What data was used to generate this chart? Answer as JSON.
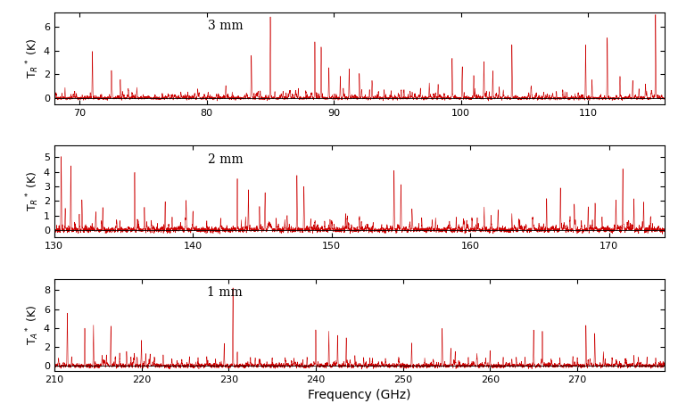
{
  "panels": [
    {
      "label": "3 mm",
      "xmin": 68,
      "xmax": 116,
      "ymin": -0.5,
      "ymax": 7.2,
      "yticks": [
        0,
        2,
        4,
        6
      ],
      "xticks": [
        70,
        80,
        90,
        100,
        110
      ],
      "ylabel": "T$_R$$^*$ (K)",
      "noise": 0.06,
      "strong_lines": [
        [
          71.0,
          3.8
        ],
        [
          72.5,
          2.0
        ],
        [
          73.2,
          1.5
        ],
        [
          74.5,
          0.9
        ],
        [
          83.5,
          3.6
        ],
        [
          85.0,
          7.0
        ],
        [
          86.5,
          0.7
        ],
        [
          87.2,
          0.8
        ],
        [
          88.5,
          4.8
        ],
        [
          89.0,
          3.9
        ],
        [
          89.6,
          2.5
        ],
        [
          90.5,
          1.6
        ],
        [
          91.2,
          2.4
        ],
        [
          92.0,
          2.0
        ],
        [
          93.0,
          1.5
        ],
        [
          96.0,
          0.5
        ],
        [
          99.3,
          3.3
        ],
        [
          100.1,
          2.5
        ],
        [
          101.0,
          1.9
        ],
        [
          101.8,
          2.7
        ],
        [
          102.5,
          1.8
        ],
        [
          104.0,
          4.4
        ],
        [
          109.8,
          4.5
        ],
        [
          110.3,
          1.5
        ],
        [
          111.5,
          5.2
        ],
        [
          114.5,
          0.9
        ],
        [
          115.3,
          7.1
        ]
      ],
      "medium_lines": [
        [
          69.5,
          0.4
        ],
        [
          70.2,
          0.3
        ],
        [
          75.0,
          0.3
        ],
        [
          76.5,
          0.4
        ],
        [
          77.2,
          0.3
        ],
        [
          78.5,
          0.5
        ],
        [
          79.3,
          0.4
        ],
        [
          80.1,
          0.5
        ],
        [
          81.5,
          0.4
        ],
        [
          82.0,
          0.4
        ],
        [
          84.2,
          0.6
        ],
        [
          86.0,
          0.5
        ],
        [
          87.8,
          0.6
        ],
        [
          92.8,
          0.8
        ],
        [
          93.5,
          0.5
        ],
        [
          94.5,
          0.6
        ],
        [
          95.3,
          0.7
        ],
        [
          96.8,
          0.5
        ],
        [
          97.5,
          1.0
        ],
        [
          98.2,
          0.8
        ],
        [
          103.0,
          1.0
        ],
        [
          105.5,
          0.8
        ],
        [
          106.5,
          0.6
        ],
        [
          107.5,
          0.5
        ],
        [
          108.0,
          0.7
        ],
        [
          112.5,
          1.8
        ],
        [
          113.5,
          1.2
        ],
        [
          114.0,
          0.8
        ]
      ]
    },
    {
      "label": "2 mm",
      "xmin": 130,
      "xmax": 174,
      "ymin": -0.5,
      "ymax": 5.8,
      "yticks": [
        0,
        1,
        2,
        3,
        4,
        5
      ],
      "xticks": [
        130,
        140,
        150,
        160,
        170
      ],
      "ylabel": "T$_R$$^*$ (K)",
      "noise": 0.08,
      "strong_lines": [
        [
          130.5,
          5.0
        ],
        [
          131.2,
          4.5
        ],
        [
          132.0,
          2.0
        ],
        [
          133.5,
          1.5
        ],
        [
          135.8,
          4.0
        ],
        [
          136.5,
          1.5
        ],
        [
          138.0,
          2.0
        ],
        [
          139.5,
          1.5
        ],
        [
          143.2,
          3.3
        ],
        [
          144.0,
          2.9
        ],
        [
          144.8,
          1.7
        ],
        [
          145.2,
          2.1
        ],
        [
          147.5,
          3.4
        ],
        [
          148.0,
          2.9
        ],
        [
          150.0,
          0.5
        ],
        [
          154.5,
          3.9
        ],
        [
          155.0,
          2.7
        ],
        [
          155.8,
          1.5
        ],
        [
          162.0,
          1.5
        ],
        [
          163.0,
          1.0
        ],
        [
          165.5,
          2.2
        ],
        [
          166.5,
          2.5
        ],
        [
          167.5,
          1.8
        ],
        [
          168.5,
          1.7
        ],
        [
          170.5,
          2.1
        ],
        [
          171.0,
          4.2
        ],
        [
          171.8,
          2.0
        ],
        [
          172.5,
          2.0
        ]
      ],
      "medium_lines": [
        [
          130.8,
          1.0
        ],
        [
          131.8,
          0.8
        ],
        [
          133.0,
          0.8
        ],
        [
          134.5,
          0.6
        ],
        [
          136.0,
          0.8
        ],
        [
          137.0,
          0.6
        ],
        [
          138.5,
          0.7
        ],
        [
          140.0,
          0.6
        ],
        [
          141.0,
          0.5
        ],
        [
          142.0,
          0.7
        ],
        [
          143.8,
          0.8
        ],
        [
          146.0,
          0.7
        ],
        [
          148.5,
          0.8
        ],
        [
          149.5,
          0.6
        ],
        [
          151.0,
          0.6
        ],
        [
          152.0,
          0.7
        ],
        [
          153.0,
          0.5
        ],
        [
          156.5,
          0.8
        ],
        [
          157.5,
          0.8
        ],
        [
          158.5,
          0.6
        ],
        [
          159.5,
          0.7
        ],
        [
          160.5,
          0.8
        ],
        [
          161.0,
          1.5
        ],
        [
          161.5,
          1.0
        ],
        [
          163.5,
          0.6
        ],
        [
          164.5,
          0.7
        ],
        [
          169.0,
          1.8
        ],
        [
          169.5,
          0.8
        ],
        [
          173.0,
          0.9
        ]
      ]
    },
    {
      "label": "1 mm",
      "xmin": 210,
      "xmax": 280,
      "ymin": -0.5,
      "ymax": 9.2,
      "yticks": [
        0,
        2,
        4,
        6,
        8
      ],
      "xticks": [
        210,
        220,
        230,
        240,
        250,
        260,
        270
      ],
      "ylabel": "T$_A$$^*$ (K)",
      "noise": 0.1,
      "strong_lines": [
        [
          211.5,
          5.5
        ],
        [
          213.5,
          4.0
        ],
        [
          214.5,
          4.2
        ],
        [
          216.5,
          3.8
        ],
        [
          217.5,
          1.2
        ],
        [
          218.3,
          1.5
        ],
        [
          219.5,
          1.0
        ],
        [
          220.0,
          2.8
        ],
        [
          221.0,
          0.8
        ],
        [
          229.5,
          2.5
        ],
        [
          230.5,
          8.2
        ],
        [
          231.0,
          1.5
        ],
        [
          240.0,
          3.8
        ],
        [
          241.5,
          3.5
        ],
        [
          242.5,
          3.2
        ],
        [
          243.5,
          3.0
        ],
        [
          244.5,
          1.0
        ],
        [
          245.5,
          0.8
        ],
        [
          251.0,
          2.5
        ],
        [
          254.5,
          4.0
        ],
        [
          255.5,
          1.8
        ],
        [
          256.0,
          1.5
        ],
        [
          258.5,
          0.8
        ],
        [
          260.0,
          1.5
        ],
        [
          265.0,
          3.8
        ],
        [
          266.0,
          3.5
        ],
        [
          267.0,
          0.8
        ],
        [
          269.5,
          1.0
        ],
        [
          271.0,
          3.8
        ],
        [
          272.0,
          3.5
        ],
        [
          273.0,
          1.2
        ],
        [
          275.5,
          0.8
        ],
        [
          278.0,
          0.8
        ]
      ],
      "medium_lines": [
        [
          210.5,
          0.8
        ],
        [
          212.0,
          0.9
        ],
        [
          215.5,
          0.7
        ],
        [
          216.0,
          0.8
        ],
        [
          217.0,
          0.6
        ],
        [
          218.8,
          0.9
        ],
        [
          219.2,
          1.0
        ],
        [
          220.5,
          1.2
        ],
        [
          221.5,
          0.8
        ],
        [
          222.5,
          0.9
        ],
        [
          223.5,
          0.7
        ],
        [
          225.5,
          0.6
        ],
        [
          226.5,
          0.8
        ],
        [
          227.5,
          0.9
        ],
        [
          228.5,
          0.7
        ],
        [
          232.5,
          1.0
        ],
        [
          233.5,
          0.8
        ],
        [
          235.0,
          0.7
        ],
        [
          236.5,
          0.8
        ],
        [
          237.5,
          0.7
        ],
        [
          239.0,
          0.8
        ],
        [
          246.5,
          0.7
        ],
        [
          248.0,
          0.6
        ],
        [
          249.5,
          0.7
        ],
        [
          252.5,
          0.8
        ],
        [
          253.5,
          0.7
        ],
        [
          257.5,
          0.9
        ],
        [
          259.5,
          0.7
        ],
        [
          261.5,
          0.8
        ],
        [
          262.5,
          0.7
        ],
        [
          263.0,
          0.9
        ],
        [
          264.0,
          0.8
        ],
        [
          268.0,
          0.7
        ],
        [
          270.0,
          0.8
        ],
        [
          274.0,
          0.9
        ],
        [
          276.5,
          0.8
        ],
        [
          277.0,
          1.0
        ],
        [
          279.0,
          0.8
        ]
      ]
    }
  ],
  "line_color": "#CC0000",
  "line_width": 0.4,
  "background_color": "#ffffff",
  "xlabel": "Frequency (GHz)",
  "xlabel_fontsize": 10,
  "label_fontsize": 9,
  "tick_fontsize": 8,
  "panel_label_fontsize": 10
}
